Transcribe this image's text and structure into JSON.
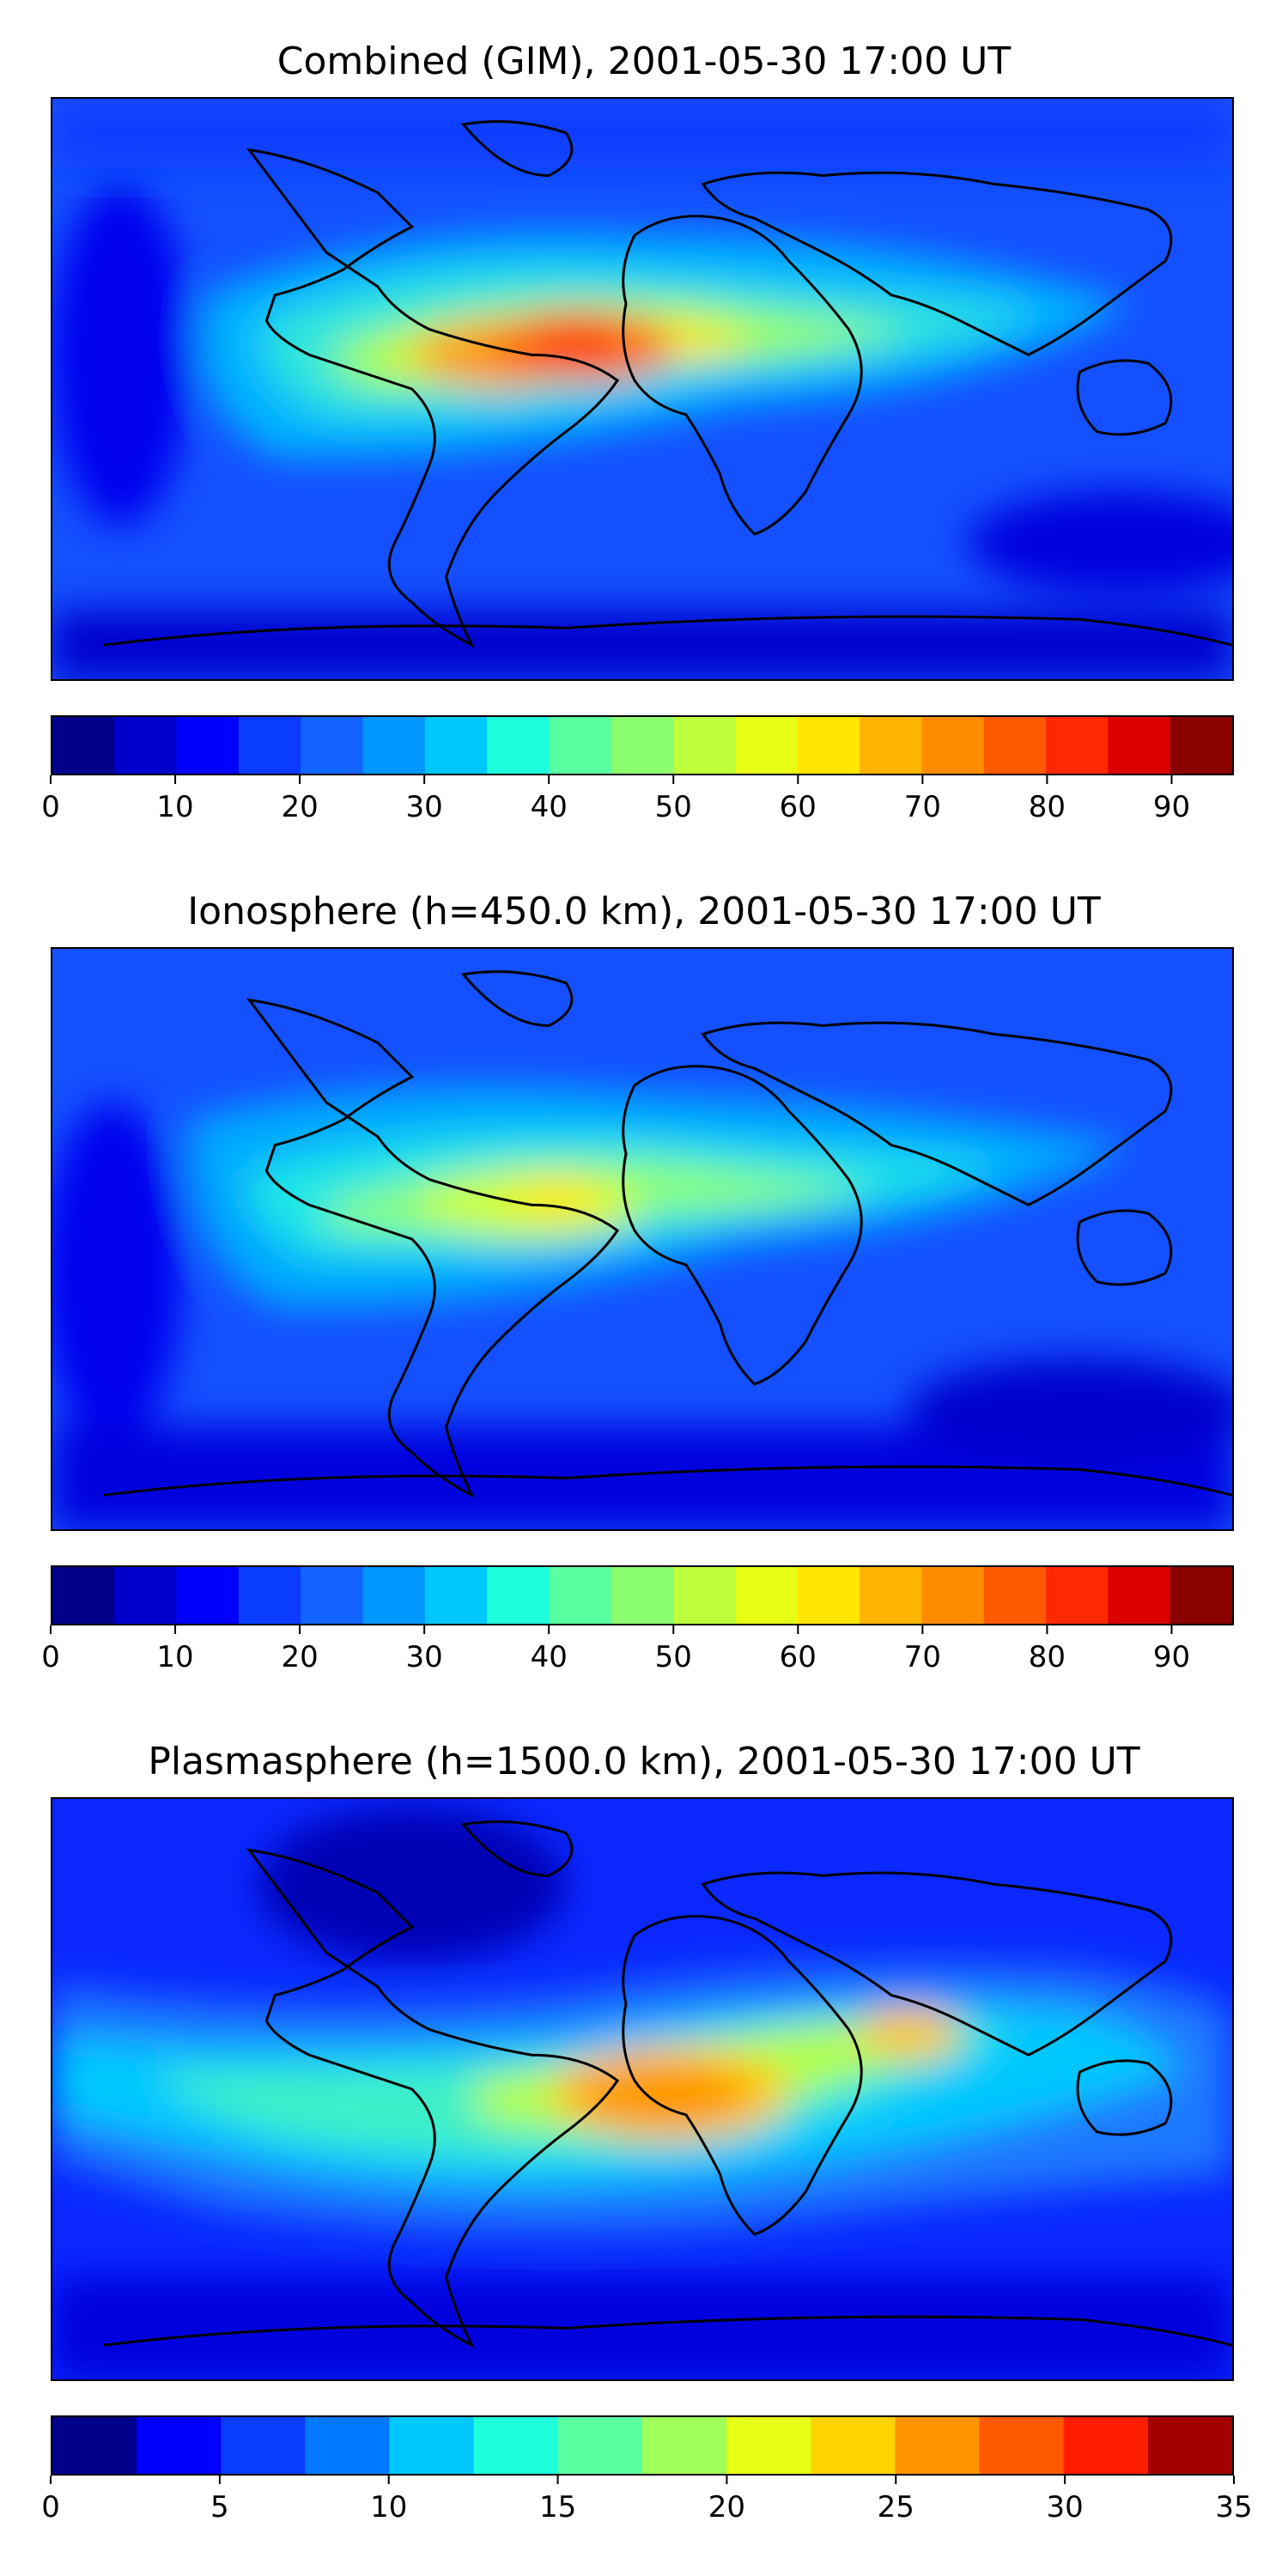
{
  "panels": [
    {
      "id": "combined",
      "title": "Combined (GIM), 2001-05-30 17:00 UT",
      "colorbar": {
        "min": 0,
        "max": 95,
        "step": 5,
        "tick_values": [
          0,
          10,
          20,
          30,
          40,
          50,
          60,
          70,
          80,
          90
        ],
        "tick_labels": [
          "0",
          "10",
          "20",
          "30",
          "40",
          "50",
          "60",
          "70",
          "80",
          "90"
        ],
        "colors": [
          "#00008b",
          "#0000cd",
          "#0000ff",
          "#0a3cff",
          "#1464ff",
          "#0096ff",
          "#00c8ff",
          "#1effdc",
          "#5affa0",
          "#8cff6e",
          "#beff3c",
          "#e6ff14",
          "#ffe600",
          "#ffb400",
          "#ff8c00",
          "#ff5a00",
          "#ff2800",
          "#dc0000",
          "#8b0000"
        ]
      },
      "background_color": "#1450ff",
      "features": [
        {
          "name": "equatorial-anomaly-band",
          "color": "#3cd2ff"
        },
        {
          "name": "south-america-atlantic-max",
          "color": "#ff7800",
          "value": 80
        },
        {
          "name": "africa-india-band",
          "color": "#b4ff46",
          "value": 55
        }
      ]
    },
    {
      "id": "ionosphere",
      "title": "Ionosphere  (h=450.0 km), 2001-05-30 17:00 UT",
      "colorbar": {
        "min": 0,
        "max": 95,
        "step": 5,
        "tick_values": [
          0,
          10,
          20,
          30,
          40,
          50,
          60,
          70,
          80,
          90
        ],
        "tick_labels": [
          "0",
          "10",
          "20",
          "30",
          "40",
          "50",
          "60",
          "70",
          "80",
          "90"
        ],
        "colors": [
          "#00008b",
          "#0000cd",
          "#0000ff",
          "#0a3cff",
          "#1464ff",
          "#0096ff",
          "#00c8ff",
          "#1effdc",
          "#5affa0",
          "#8cff6e",
          "#beff3c",
          "#e6ff14",
          "#ffe600",
          "#ffb400",
          "#ff8c00",
          "#ff5a00",
          "#ff2800",
          "#dc0000",
          "#8b0000"
        ]
      },
      "background_color": "#1450ff",
      "features": [
        {
          "name": "equatorial-anomaly-band",
          "color": "#28c8ff"
        },
        {
          "name": "south-america-max",
          "color": "#e6ff14",
          "value": 60
        },
        {
          "name": "africa-india-band",
          "color": "#6effa0",
          "value": 45
        }
      ]
    },
    {
      "id": "plasmasphere",
      "title": "Plasmasphere (h=1500.0 km), 2001-05-30 17:00 UT",
      "colorbar": {
        "min": 0,
        "max": 35,
        "step": 2.5,
        "tick_values": [
          0,
          5,
          10,
          15,
          20,
          25,
          30,
          35
        ],
        "tick_labels": [
          "0",
          "5",
          "10",
          "15",
          "20",
          "25",
          "30",
          "35"
        ],
        "colors": [
          "#00008b",
          "#0000ff",
          "#0a3cff",
          "#0078ff",
          "#00c8ff",
          "#1effdc",
          "#5affa0",
          "#a0ff5a",
          "#e6ff14",
          "#ffd200",
          "#ff9600",
          "#ff5a00",
          "#ff1e00",
          "#a50000"
        ]
      },
      "background_color": "#0a28ff",
      "features": [
        {
          "name": "low-latitude-band",
          "color": "#1e8cff"
        },
        {
          "name": "africa-max",
          "color": "#ff9600",
          "value": 27
        },
        {
          "name": "india-max",
          "color": "#ffc800",
          "value": 25
        }
      ]
    }
  ]
}
